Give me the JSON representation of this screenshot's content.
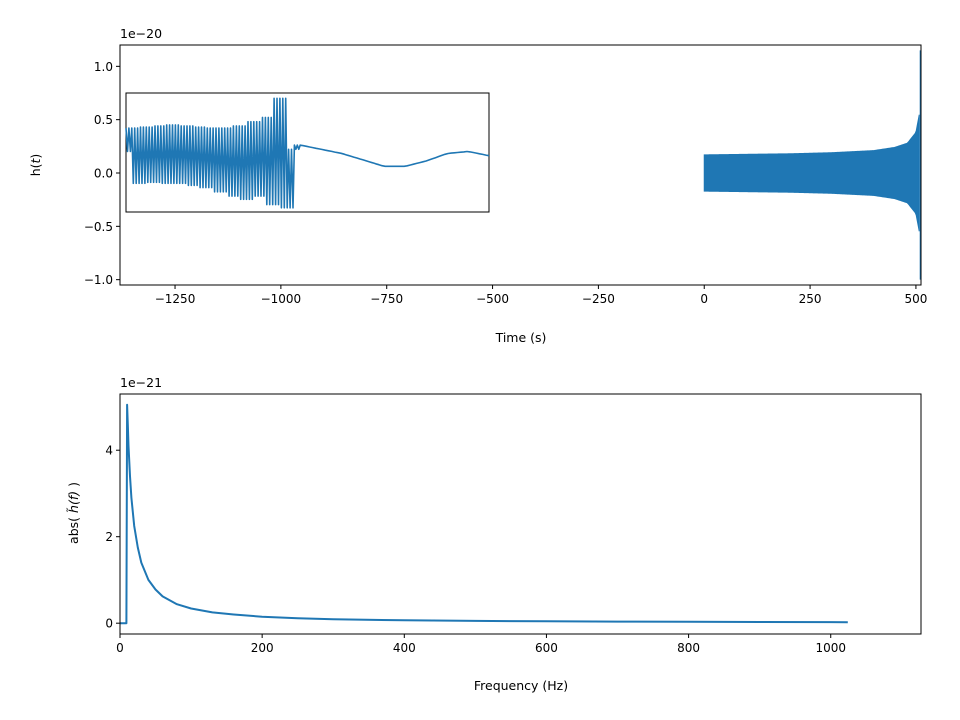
{
  "chart_data": [
    {
      "type": "line",
      "title": "",
      "xlabel": "Time (s)",
      "ylabel_prefix": "h(",
      "ylabel_var": "t",
      "ylabel_suffix": ")",
      "offset_text": "1e−20",
      "xlim": [
        -1380,
        512
      ],
      "ylim": [
        -1.05,
        1.2
      ],
      "xticks": [
        {
          "value": -1250,
          "label": "−1250"
        },
        {
          "value": -1000,
          "label": "−1000"
        },
        {
          "value": -750,
          "label": "−750"
        },
        {
          "value": -500,
          "label": "−500"
        },
        {
          "value": -250,
          "label": "−250"
        },
        {
          "value": 0,
          "label": "0"
        },
        {
          "value": 250,
          "label": "250"
        },
        {
          "value": 500,
          "label": "500"
        }
      ],
      "yticks": [
        {
          "value": 1.0,
          "label": "1.0"
        },
        {
          "value": 0.5,
          "label": "0.5"
        },
        {
          "value": 0.0,
          "label": "0.0"
        },
        {
          "value": -0.5,
          "label": "−0.5"
        },
        {
          "value": -1.0,
          "label": "−1.0"
        }
      ],
      "grid": false,
      "color": "#1f77b4",
      "series": [
        {
          "signal_start": 0,
          "signal_end": 512,
          "amplitude_envelope": [
            {
              "x": 0,
              "y": 0.17
            },
            {
              "x": 100,
              "y": 0.175
            },
            {
              "x": 200,
              "y": 0.18
            },
            {
              "x": 300,
              "y": 0.19
            },
            {
              "x": 400,
              "y": 0.21
            },
            {
              "x": 450,
              "y": 0.24
            },
            {
              "x": 480,
              "y": 0.28
            },
            {
              "x": 500,
              "y": 0.38
            },
            {
              "x": 508,
              "y": 0.55
            },
            {
              "x": 511,
              "y": 1.15
            }
          ],
          "min_value": -1.0,
          "max_value": 1.15
        }
      ],
      "inset": {
        "description_rendered": false,
        "samples": [
          0.2,
          0.42,
          -0.1,
          0.43,
          -0.09,
          0.44,
          -0.1,
          0.45,
          -0.1,
          0.44,
          -0.12,
          0.43,
          -0.14,
          0.42,
          -0.18,
          0.42,
          -0.22,
          0.44,
          -0.25,
          0.48,
          -0.22,
          0.52,
          -0.3,
          0.7,
          -0.33,
          0.22,
          0.26,
          0.22,
          0.18,
          0.12,
          0.06,
          0.06,
          0.11,
          0.18,
          0.2,
          0.16
        ]
      }
    },
    {
      "type": "line",
      "title": "",
      "xlabel": "Frequency (Hz)",
      "ylabel_prefix": "abs( ",
      "ylabel_var": "h̃(f)",
      "ylabel_suffix": " )",
      "offset_text": "1e−21",
      "xlim": [
        0,
        1127
      ],
      "ylim": [
        -0.25,
        5.3
      ],
      "xticks": [
        {
          "value": 0,
          "label": "0"
        },
        {
          "value": 200,
          "label": "200"
        },
        {
          "value": 400,
          "label": "400"
        },
        {
          "value": 600,
          "label": "600"
        },
        {
          "value": 800,
          "label": "800"
        },
        {
          "value": 1000,
          "label": "1000"
        }
      ],
      "yticks": [
        {
          "value": 4,
          "label": "4"
        },
        {
          "value": 2,
          "label": "2"
        },
        {
          "value": 0,
          "label": "0"
        }
      ],
      "grid": false,
      "color": "#1f77b4",
      "series": [
        {
          "x": [
            0,
            8,
            9,
            10,
            11,
            12,
            14,
            16,
            20,
            25,
            30,
            40,
            50,
            60,
            80,
            100,
            130,
            160,
            200,
            250,
            300,
            400,
            500,
            600,
            700,
            800,
            900,
            1000,
            1024
          ],
          "y": [
            0,
            0,
            0,
            5.05,
            4.6,
            4.1,
            3.4,
            2.9,
            2.25,
            1.75,
            1.4,
            1.0,
            0.78,
            0.62,
            0.44,
            0.34,
            0.25,
            0.2,
            0.15,
            0.115,
            0.093,
            0.067,
            0.052,
            0.043,
            0.037,
            0.032,
            0.028,
            0.025,
            0.024
          ]
        }
      ]
    }
  ]
}
